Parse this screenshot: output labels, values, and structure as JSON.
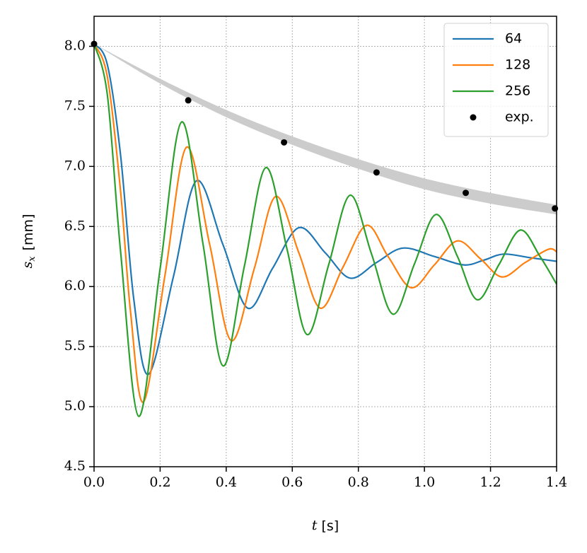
{
  "chart_data": {
    "type": "line",
    "xlabel": {
      "symbol": "t",
      "unit": "[s]"
    },
    "ylabel": {
      "symbol": "s",
      "subscript": "x",
      "unit": "[mm]"
    },
    "xlim": [
      0,
      1.4
    ],
    "ylim": [
      4.5,
      8.25
    ],
    "xticks": [
      {
        "value": 0,
        "label": "0.0"
      },
      {
        "value": 0.2,
        "label": "0.2"
      },
      {
        "value": 0.4,
        "label": "0.4"
      },
      {
        "value": 0.6,
        "label": "0.6"
      },
      {
        "value": 0.8,
        "label": "0.8"
      },
      {
        "value": 1.0,
        "label": "1.0"
      },
      {
        "value": 1.2,
        "label": "1.2"
      },
      {
        "value": 1.4,
        "label": "1.4"
      }
    ],
    "yticks": [
      4.5,
      {
        "value": 5,
        "label": "5.0"
      },
      5.5,
      {
        "value": 6,
        "label": "6.0"
      },
      6.5,
      {
        "value": 7,
        "label": "7.0"
      },
      7.5,
      {
        "value": 8,
        "label": "8.0"
      }
    ],
    "grid": true,
    "legend": "upper right",
    "band": {
      "color": "#cccccc",
      "x": [
        0,
        0.2,
        0.4,
        0.6,
        0.8,
        1.0,
        1.2,
        1.4
      ],
      "upper": [
        8.02,
        7.73,
        7.47,
        7.25,
        7.06,
        6.9,
        6.78,
        6.68
      ],
      "lower": [
        8.02,
        7.69,
        7.41,
        7.18,
        6.98,
        6.81,
        6.69,
        6.6
      ]
    },
    "series": [
      {
        "name": "64",
        "color": "#1f77b4",
        "style": "line",
        "x": [
          0,
          0.04,
          0.08,
          0.12,
          0.165,
          0.24,
          0.31,
          0.39,
          0.465,
          0.54,
          0.62,
          0.7,
          0.775,
          0.855,
          0.935,
          1.03,
          1.12,
          1.18,
          1.24,
          1.32,
          1.4
        ],
        "values": [
          8.02,
          7.85,
          7.1,
          5.9,
          5.27,
          6.08,
          6.88,
          6.35,
          5.82,
          6.15,
          6.49,
          6.28,
          6.07,
          6.2,
          6.32,
          6.25,
          6.18,
          6.22,
          6.27,
          6.24,
          6.21
        ]
      },
      {
        "name": "128",
        "color": "#ff7f0e",
        "style": "line",
        "x": [
          0,
          0.04,
          0.08,
          0.11,
          0.15,
          0.215,
          0.28,
          0.35,
          0.415,
          0.485,
          0.55,
          0.62,
          0.685,
          0.755,
          0.825,
          0.89,
          0.96,
          1.03,
          1.1,
          1.17,
          1.235,
          1.305,
          1.375,
          1.4
        ],
        "values": [
          8.02,
          7.75,
          6.8,
          5.8,
          5.04,
          6.1,
          7.16,
          6.35,
          5.55,
          6.15,
          6.75,
          6.28,
          5.82,
          6.17,
          6.51,
          6.25,
          5.99,
          6.18,
          6.38,
          6.23,
          6.08,
          6.2,
          6.31,
          6.29
        ]
      },
      {
        "name": "256",
        "color": "#2ca02c",
        "style": "line",
        "x": [
          0,
          0.04,
          0.08,
          0.135,
          0.2,
          0.265,
          0.33,
          0.39,
          0.455,
          0.52,
          0.585,
          0.645,
          0.71,
          0.775,
          0.84,
          0.905,
          0.97,
          1.035,
          1.1,
          1.16,
          1.225,
          1.29,
          1.35,
          1.4
        ],
        "values": [
          8.02,
          7.6,
          6.3,
          4.92,
          6.15,
          7.37,
          6.35,
          5.34,
          6.17,
          6.99,
          6.3,
          5.6,
          6.18,
          6.76,
          6.27,
          5.77,
          6.19,
          6.6,
          6.25,
          5.89,
          6.18,
          6.47,
          6.25,
          6.02
        ]
      },
      {
        "name": "exp.",
        "color": "#000000",
        "style": "points",
        "x": [
          0,
          0.285,
          0.575,
          0.855,
          1.125,
          1.395
        ],
        "values": [
          8.02,
          7.55,
          7.2,
          6.95,
          6.78,
          6.65
        ]
      }
    ]
  }
}
